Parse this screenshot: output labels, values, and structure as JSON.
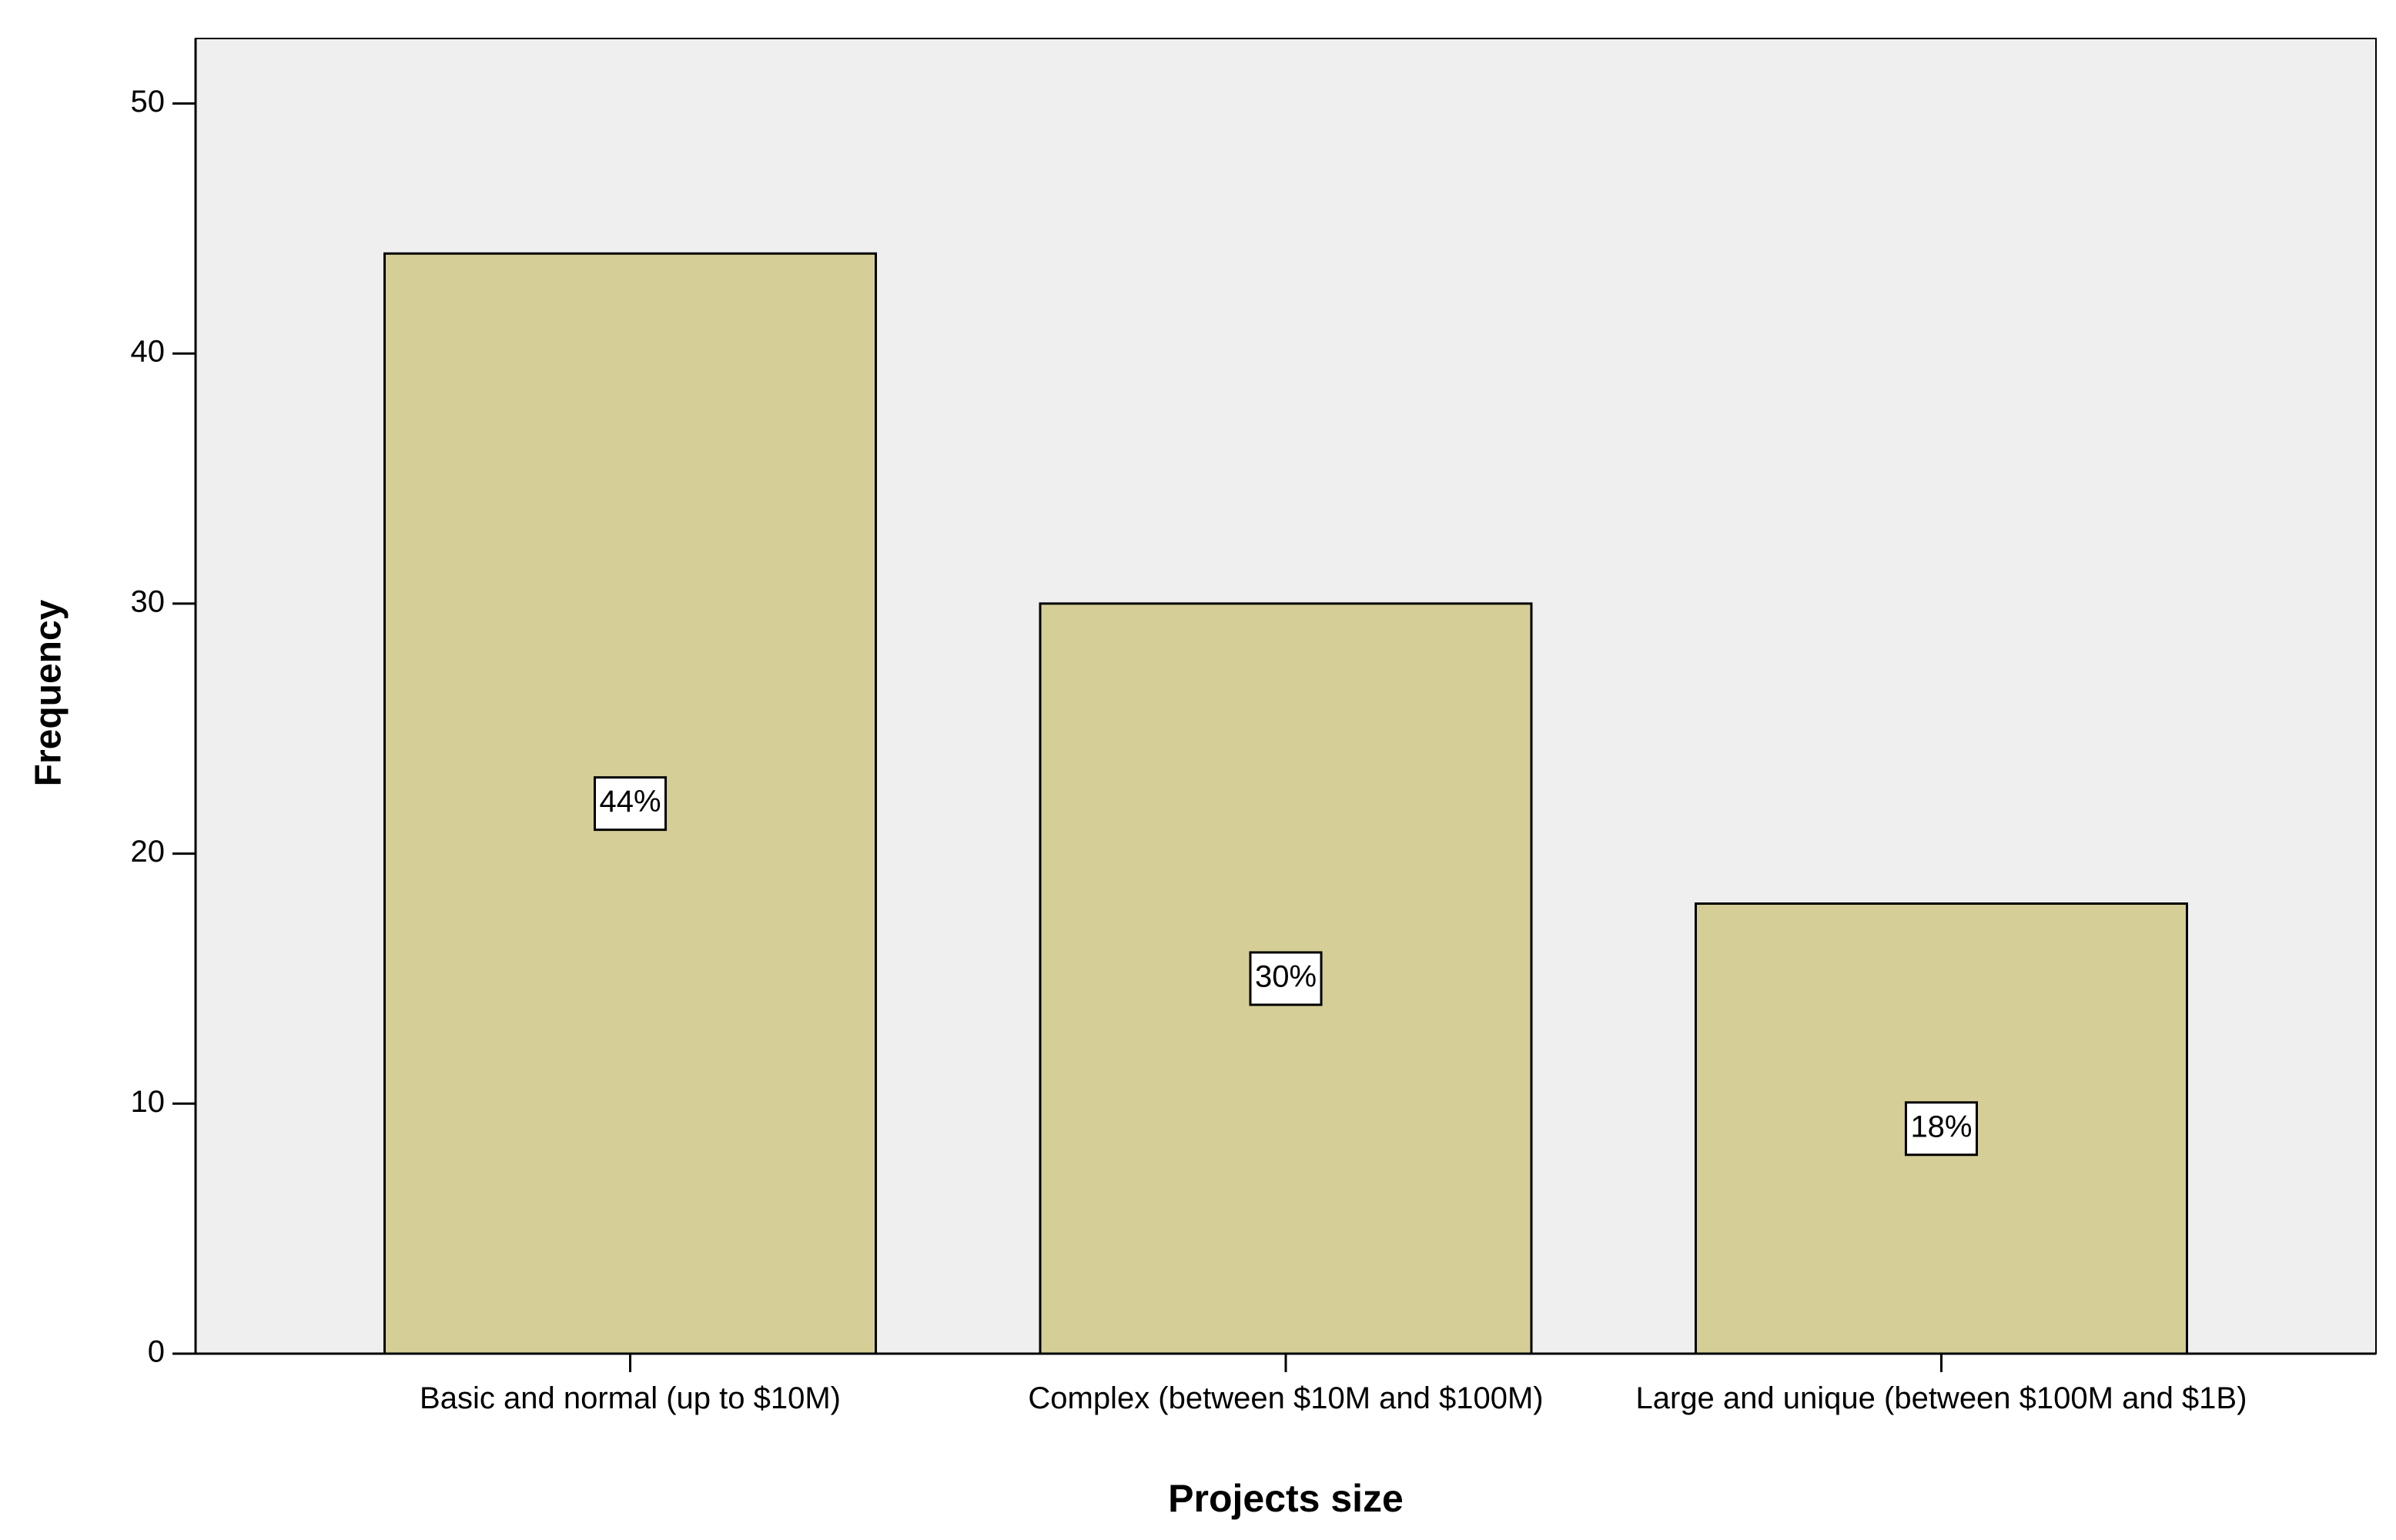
{
  "chart_data": {
    "type": "bar",
    "categories": [
      "Basic and normal (up to $10M)",
      "Complex (between $10M and $100M)",
      "Large and unique (between $100M and $1B)"
    ],
    "values": [
      44,
      30,
      18
    ],
    "value_labels": [
      "44%",
      "30%",
      "18%"
    ],
    "color": "#d5cf97",
    "x_label": "Projects size",
    "y_label": "Frequency",
    "ylim": [
      0,
      52.6
    ],
    "yticks": [
      0,
      10,
      20,
      30,
      40,
      50
    ],
    "grid": false
  }
}
